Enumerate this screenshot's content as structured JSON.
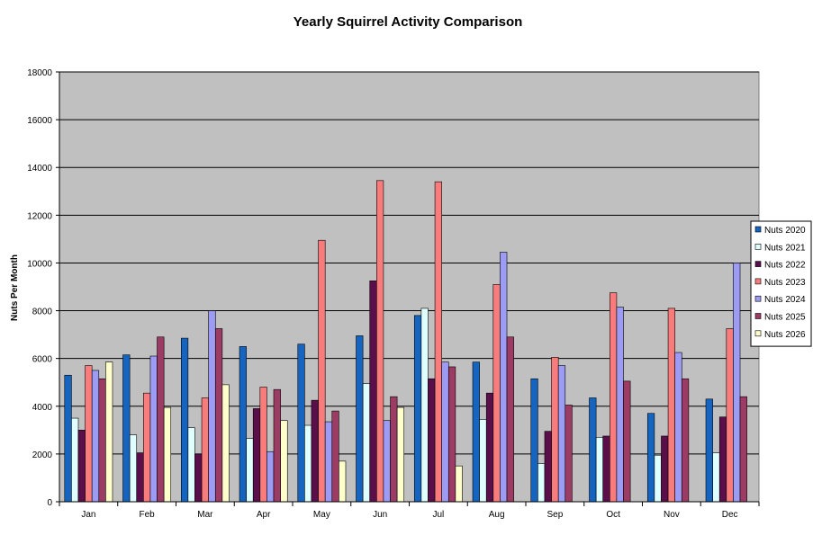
{
  "chart_data": {
    "type": "bar",
    "title": "Yearly Squirrel Activity Comparison",
    "xlabel": "",
    "ylabel": "Nuts Per Month",
    "ylim": [
      0,
      18000
    ],
    "ytick_step": 2000,
    "grid": true,
    "legend_position": "right",
    "categories": [
      "Jan",
      "Feb",
      "Mar",
      "Apr",
      "May",
      "Jun",
      "Jul",
      "Aug",
      "Sep",
      "Oct",
      "Nov",
      "Dec"
    ],
    "series": [
      {
        "name": "Nuts 2020",
        "color": "#1565c0",
        "values": [
          5300,
          6150,
          6850,
          6500,
          6600,
          6950,
          7800,
          5850,
          5150,
          4350,
          3700,
          4300
        ]
      },
      {
        "name": "Nuts 2021",
        "color": "#e0ffff",
        "values": [
          3500,
          2800,
          3100,
          2650,
          3200,
          4950,
          8100,
          3450,
          1600,
          2700,
          1950,
          2050
        ]
      },
      {
        "name": "Nuts 2022",
        "color": "#5a0f4a",
        "values": [
          3000,
          2050,
          2000,
          3900,
          4250,
          9250,
          5150,
          4550,
          2950,
          2750,
          2750,
          3550
        ]
      },
      {
        "name": "Nuts 2023",
        "color": "#f97c7c",
        "values": [
          5700,
          4550,
          4350,
          4800,
          10950,
          13450,
          13400,
          9100,
          6050,
          8750,
          8100,
          7250
        ]
      },
      {
        "name": "Nuts 2024",
        "color": "#9c9cf5",
        "values": [
          5500,
          6100,
          8000,
          2100,
          3350,
          3400,
          5850,
          10450,
          5700,
          8150,
          6250,
          10000
        ]
      },
      {
        "name": "Nuts 2025",
        "color": "#9c3c64",
        "values": [
          5150,
          6900,
          7250,
          4700,
          3800,
          4400,
          5650,
          6900,
          4050,
          5050,
          5150,
          4400
        ]
      },
      {
        "name": "Nuts 2026",
        "color": "#ffffcc",
        "values": [
          5850,
          3950,
          4900,
          3400,
          1700,
          3950,
          1500,
          null,
          null,
          null,
          null,
          null
        ]
      }
    ]
  }
}
